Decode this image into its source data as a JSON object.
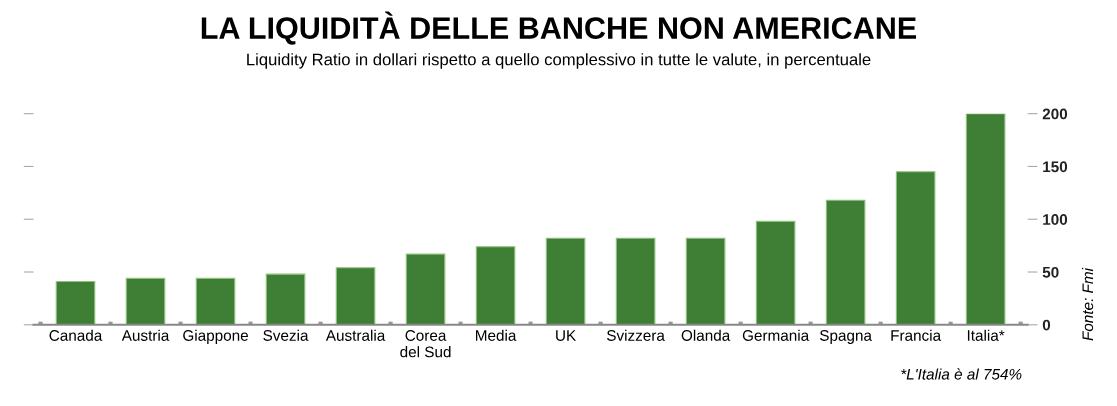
{
  "chart_data": {
    "type": "bar",
    "title": "LA LIQUIDITÀ DELLE BANCHE NON AMERICANE",
    "subtitle": "Liquidity Ratio in dollari rispetto a quello complessivo in tutte le valute, in percentuale",
    "categories": [
      "Canada",
      "Austria",
      "Giappone",
      "Svezia",
      "Australia",
      "Corea\ndel Sud",
      "Media",
      "UK",
      "Svizzera",
      "Olanda",
      "Germania",
      "Spagna",
      "Francia",
      "Italia*"
    ],
    "values": [
      41,
      44,
      44,
      48,
      54,
      67,
      74,
      82,
      82,
      82,
      98,
      118,
      145,
      200
    ],
    "color": "#3f7f35",
    "ylim": [
      0,
      200
    ],
    "yticks": [
      0,
      50,
      100,
      150,
      200
    ],
    "grid": false,
    "legend": false,
    "annotations": [
      "*L'Italia è al 754%",
      "Fonte: Fmi"
    ]
  }
}
